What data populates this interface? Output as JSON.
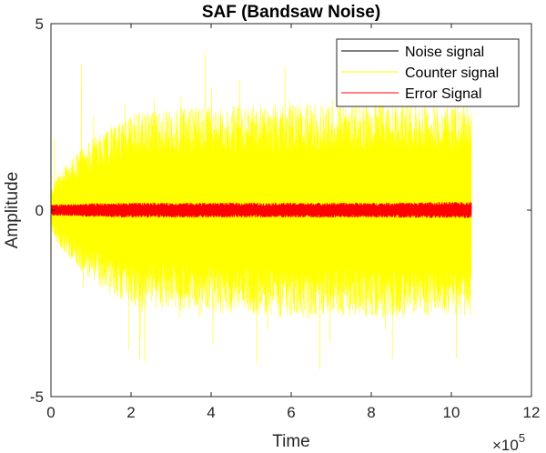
{
  "chart_data": {
    "type": "line",
    "title": "SAF (Bandsaw Noise)",
    "xlabel": "Time",
    "ylabel": "Amplitude",
    "xlim": [
      0,
      1200000
    ],
    "ylim": [
      -5,
      5
    ],
    "x_exponent_label": "×10",
    "x_exponent": "5",
    "x_ticks": [
      0,
      200000,
      400000,
      600000,
      800000,
      1000000,
      1200000
    ],
    "x_tick_labels": [
      "0",
      "2",
      "4",
      "6",
      "8",
      "10",
      "12"
    ],
    "y_ticks": [
      -5,
      0,
      5
    ],
    "y_tick_labels": [
      "-5",
      "0",
      "5"
    ],
    "x_range_of_signal": [
      0,
      1050000
    ],
    "grid": false,
    "legend_position": "top-right",
    "series": [
      {
        "name": "Noise signal",
        "color": "#000000",
        "style": "dense random noise",
        "amplitude_profile": {
          "x": [
            0,
            100000,
            200000,
            400000,
            600000,
            800000,
            1050000
          ],
          "envelope": [
            0.18,
            0.2,
            0.22,
            0.22,
            0.22,
            0.22,
            0.22
          ]
        }
      },
      {
        "name": "Counter signal",
        "color": "#ffff00",
        "style": "dense random noise",
        "amplitude_profile": {
          "x": [
            0,
            20000,
            100000,
            200000,
            300000,
            400000,
            500000,
            600000,
            700000,
            800000,
            900000,
            1000000,
            1050000
          ],
          "envelope": [
            0.5,
            1.0,
            1.9,
            2.6,
            2.7,
            2.8,
            2.8,
            2.9,
            2.8,
            2.9,
            2.9,
            2.8,
            2.9
          ],
          "max_spike": 4.3
        }
      },
      {
        "name": "Error Signal",
        "color": "#ff0000",
        "style": "dense random noise",
        "amplitude_profile": {
          "x": [
            0,
            100000,
            200000,
            400000,
            600000,
            800000,
            1050000
          ],
          "envelope": [
            0.15,
            0.18,
            0.2,
            0.2,
            0.2,
            0.2,
            0.22
          ]
        }
      }
    ]
  }
}
